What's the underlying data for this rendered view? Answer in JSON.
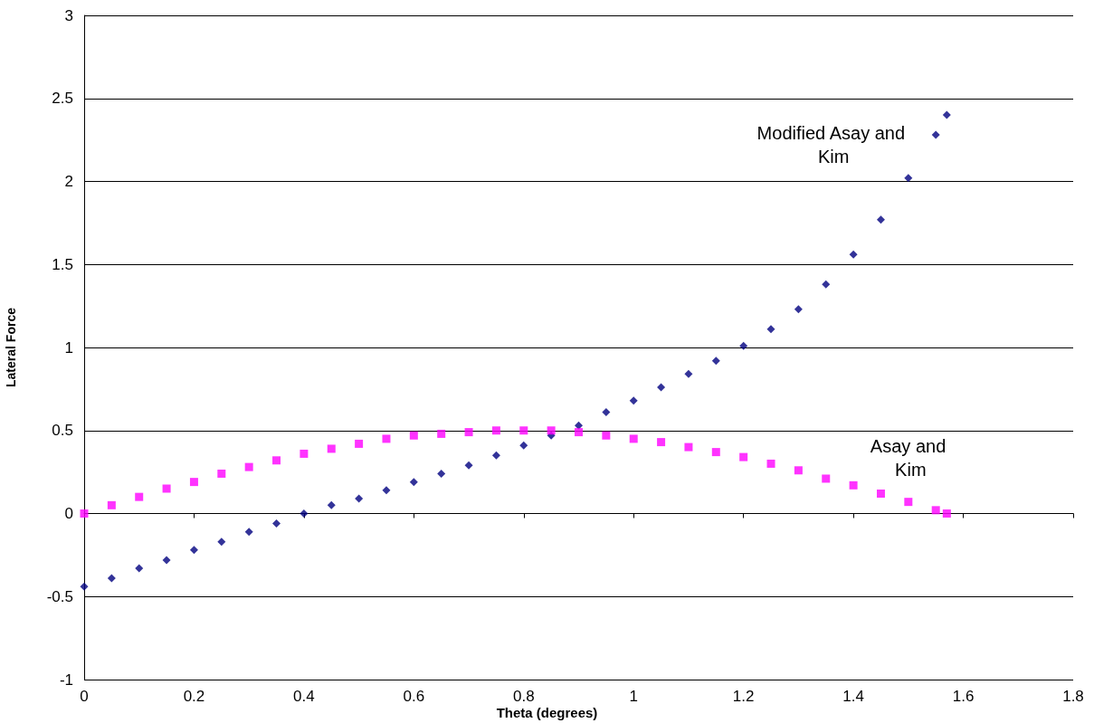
{
  "chart_data": {
    "type": "scatter",
    "xlabel": "Theta (degrees)",
    "ylabel": "Lateral Force",
    "x": [
      0,
      0.05,
      0.1,
      0.15,
      0.2,
      0.25,
      0.3,
      0.35,
      0.4,
      0.45,
      0.5,
      0.55,
      0.6,
      0.65,
      0.7,
      0.75,
      0.8,
      0.85,
      0.9,
      0.95,
      1.0,
      1.05,
      1.1,
      1.15,
      1.2,
      1.25,
      1.3,
      1.35,
      1.4,
      1.45,
      1.5,
      1.55,
      1.57
    ],
    "series": [
      {
        "name": "Modified Asay and Kim",
        "color": "#000080",
        "marker": "diamond",
        "values": [
          -0.44,
          -0.39,
          -0.33,
          -0.28,
          -0.22,
          -0.17,
          -0.11,
          -0.06,
          0.0,
          0.05,
          0.09,
          0.14,
          0.19,
          0.24,
          0.29,
          0.35,
          0.41,
          0.47,
          0.53,
          0.61,
          0.68,
          0.76,
          0.84,
          0.92,
          1.01,
          1.11,
          1.23,
          1.38,
          1.56,
          1.77,
          2.02,
          2.28,
          2.4
        ]
      },
      {
        "name": "Asay and Kim",
        "color": "#ff00ff",
        "marker": "square",
        "values": [
          0,
          0.05,
          0.1,
          0.15,
          0.19,
          0.24,
          0.28,
          0.32,
          0.36,
          0.39,
          0.42,
          0.45,
          0.47,
          0.48,
          0.49,
          0.5,
          0.5,
          0.5,
          0.49,
          0.47,
          0.45,
          0.43,
          0.4,
          0.37,
          0.34,
          0.3,
          0.26,
          0.21,
          0.17,
          0.12,
          0.07,
          0.02,
          0.0
        ]
      }
    ],
    "xlim": [
      0,
      1.8
    ],
    "xticks": [
      0,
      0.2,
      0.4,
      0.6,
      0.8,
      1,
      1.2,
      1.4,
      1.6,
      1.8
    ],
    "ylim": [
      -1,
      3
    ],
    "yticks": [
      -1,
      -0.5,
      0,
      0.5,
      1,
      1.5,
      2,
      2.5,
      3
    ],
    "grid": "y",
    "legend": false
  }
}
